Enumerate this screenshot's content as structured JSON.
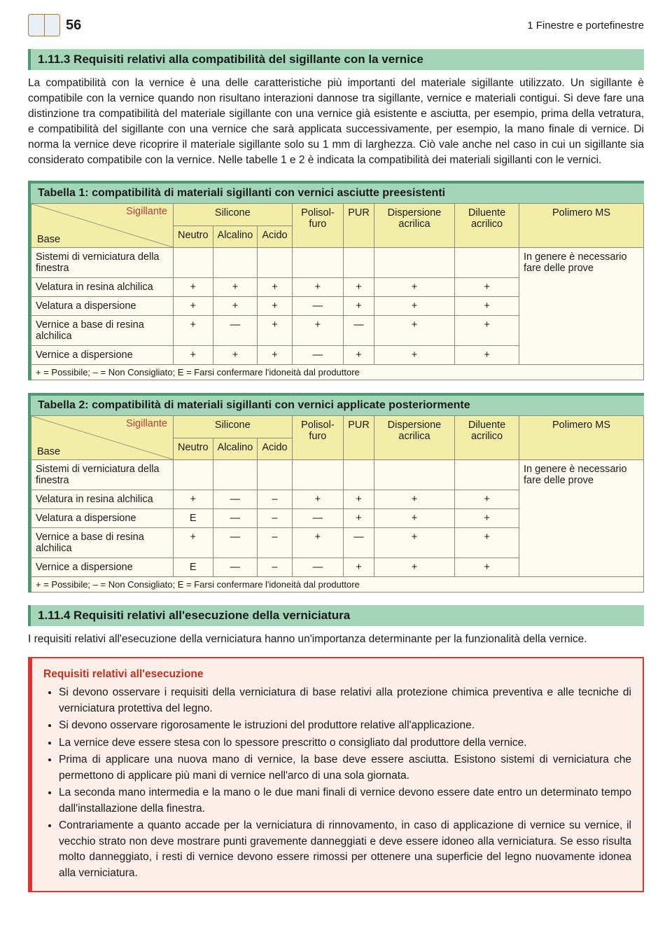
{
  "page_number": "56",
  "chapter": "1 Finestre e portefinestre",
  "section_113_title": "1.11.3 Requisiti relativi alla compatibilità del sigillante con la vernice",
  "para_113": "La compatibilità con la vernice è una delle caratteristiche più importanti del materiale sigillante utilizzato. Un sigillante è compatibile con la vernice quando non risultano interazioni dannose tra sigillante, vernice e materiali contigui. Si deve fare una distinzione tra compatibilità del materiale sigillante con una vernice già esistente e asciutta, per esempio, prima della vetratura, e compatibilità del sigillante con una vernice che sarà applicata successivamente, per esempio, la mano finale di vernice. Di norma la vernice deve ricoprire il materiale sigillante solo su 1 mm di larghezza. Ciò vale anche nel caso in cui un sigillante sia considerato compatibile con la vernice. Nelle tabelle 1 e 2 è indicata la compatibilità dei materiali sigillanti con le vernici.",
  "diag_top": "Sigillante",
  "diag_bottom": "Base",
  "col_silicone": "Silicone",
  "col_neutro": "Neutro",
  "col_alcalino": "Alcalino",
  "col_acido": "Acido",
  "col_polisolfuro": "Polisol-furo",
  "col_pur": "PUR",
  "col_disp_acrilica": "Dispersione acrilica",
  "col_diluente": "Diluente acrilico",
  "col_polimero": "Polimero MS",
  "rowspan_note": "In genere è necessario fare delle prove",
  "legend": "+ = Possibile; – = Non Consigliato; E = Farsi confermare l'idoneità dal produttore",
  "t1": {
    "title": "Tabella 1: compatibilità di materiali sigillanti con vernici asciutte preesistenti",
    "rows": [
      {
        "label": "Sistemi di verniciatura della finestra",
        "v": [
          "",
          "",
          "",
          "",
          "",
          "",
          ""
        ]
      },
      {
        "label": "Velatura in resina alchilica",
        "v": [
          "+",
          "+",
          "+",
          "+",
          "+",
          "+",
          "+"
        ]
      },
      {
        "label": "Velatura a dispersione",
        "v": [
          "+",
          "+",
          "+",
          "—",
          "+",
          "+",
          "+"
        ]
      },
      {
        "label": "Vernice a base di resina alchilica",
        "v": [
          "+",
          "—",
          "+",
          "+",
          "—",
          "+",
          "+"
        ]
      },
      {
        "label": "Vernice a dispersione",
        "v": [
          "+",
          "+",
          "+",
          "—",
          "+",
          "+",
          "+"
        ]
      }
    ]
  },
  "t2": {
    "title": "Tabella 2: compatibilità di materiali sigillanti con vernici applicate posteriormente",
    "rows": [
      {
        "label": "Sistemi di verniciatura della finestra",
        "v": [
          "",
          "",
          "",
          "",
          "",
          "",
          ""
        ]
      },
      {
        "label": "Velatura in resina alchilica",
        "v": [
          "+",
          "—",
          "–",
          "+",
          "+",
          "+",
          "+"
        ]
      },
      {
        "label": "Velatura a dispersione",
        "v": [
          "E",
          "—",
          "–",
          "—",
          "+",
          "+",
          "+"
        ]
      },
      {
        "label": "Vernice a base di resina alchilica",
        "v": [
          "+",
          "—",
          "–",
          "+",
          "—",
          "+",
          "+"
        ]
      },
      {
        "label": "Vernice a dispersione",
        "v": [
          "E",
          "—",
          "–",
          "—",
          "+",
          "+",
          "+"
        ]
      }
    ]
  },
  "section_114_title": "1.11.4 Requisiti relativi all'esecuzione della verniciatura",
  "para_114": "I requisiti relativi all'esecuzione della verniciatura hanno un'importanza determinante per la funzionalità della vernice.",
  "req_title": "Requisiti relativi all'esecuzione",
  "req_items": [
    "Si devono osservare i requisiti della verniciatura di base relativi alla protezione chimica preventiva e alle tecniche di verniciatura protettiva del legno.",
    "Si devono osservare rigorosamente le istruzioni del produttore relative all'applicazione.",
    "La vernice deve essere stesa con lo spessore prescritto o consigliato dal produttore della vernice.",
    "Prima di applicare una nuova mano di vernice, la base deve essere asciutta. Esistono sistemi di verniciatura che permettono di applicare più mani di vernice nell'arco di una sola giornata.",
    "La seconda mano intermedia e la mano o le due mani finali di vernice devono essere date entro un determinato tempo dall'installazione della finestra.",
    "Contrariamente a quanto accade per la verniciatura di rinnovamento, in caso di applicazione di vernice su vernice, il vecchio strato non deve mostrare punti gravemente danneggiati e deve essere idoneo alla verniciatura. Se esso risulta molto danneggiato, i resti di vernice devono essere rimossi per ottenere una superficie del legno nuovamente idonea alla verniciatura."
  ]
}
